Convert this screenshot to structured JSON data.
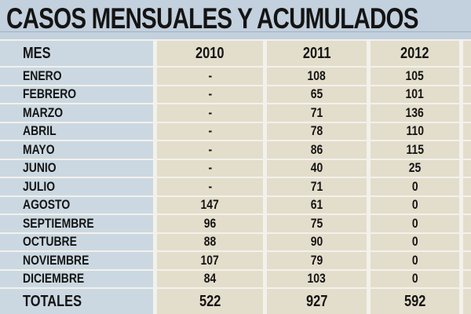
{
  "title": "CASOS MENSUALES Y ACUMULADOS",
  "colors": {
    "title_bg": "#c3d0dd",
    "mes_col_bg": "#cbd8e1",
    "data_col_bg": "#e3ddcb",
    "separator": "#f2f1ec",
    "text": "#141414"
  },
  "chart_data": {
    "type": "table",
    "title": "CASOS MENSUALES Y ACUMULADOS",
    "columns": [
      "MES",
      "2010",
      "2011",
      "2012"
    ],
    "rows": [
      [
        "ENERO",
        "-",
        "108",
        "105"
      ],
      [
        "FEBRERO",
        "-",
        "65",
        "101"
      ],
      [
        "MARZO",
        "-",
        "71",
        "136"
      ],
      [
        "ABRIL",
        "-",
        "78",
        "110"
      ],
      [
        "MAYO",
        "-",
        "86",
        "115"
      ],
      [
        "JUNIO",
        "-",
        "40",
        "25"
      ],
      [
        "JULIO",
        "-",
        "71",
        "0"
      ],
      [
        "AGOSTO",
        "147",
        "61",
        "0"
      ],
      [
        "SEPTIEMBRE",
        "96",
        "75",
        "0"
      ],
      [
        "OCTUBRE",
        "88",
        "90",
        "0"
      ],
      [
        "NOVIEMBRE",
        "107",
        "79",
        "0"
      ],
      [
        "DICIEMBRE",
        "84",
        "103",
        "0"
      ]
    ],
    "totals": [
      "TOTALES",
      "522",
      "927",
      "592"
    ]
  }
}
